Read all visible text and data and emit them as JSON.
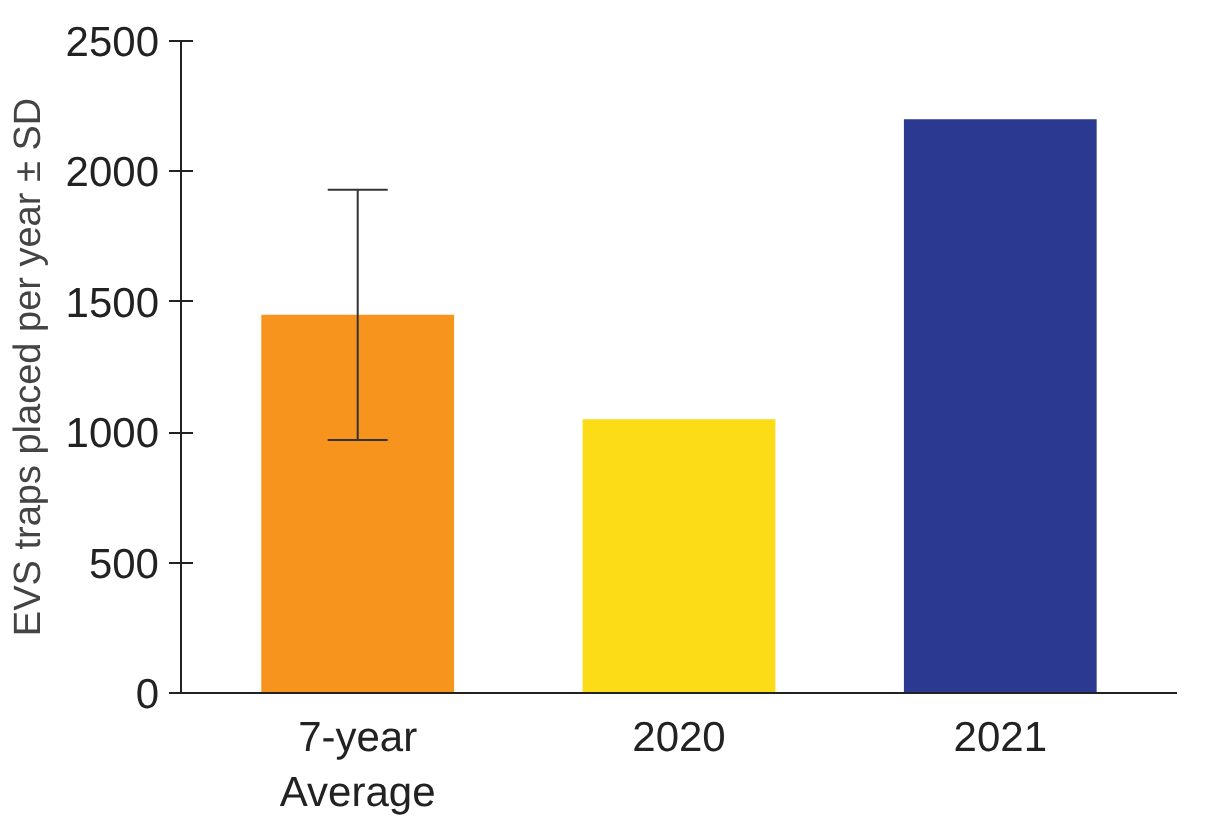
{
  "chart_data": {
    "type": "bar",
    "ylabel": "EVS traps placed per year ± SD",
    "categories": [
      "7-year\nAverage",
      "2020",
      "2021"
    ],
    "values": [
      1450,
      1050,
      2200
    ],
    "colors": [
      "#f7941d",
      "#fcdc17",
      "#2b3990"
    ],
    "errors": [
      480,
      null,
      null
    ],
    "ylim": [
      0,
      2500
    ],
    "yticks": [
      0,
      500,
      1000,
      1500,
      2000,
      2500
    ],
    "grid": false
  }
}
